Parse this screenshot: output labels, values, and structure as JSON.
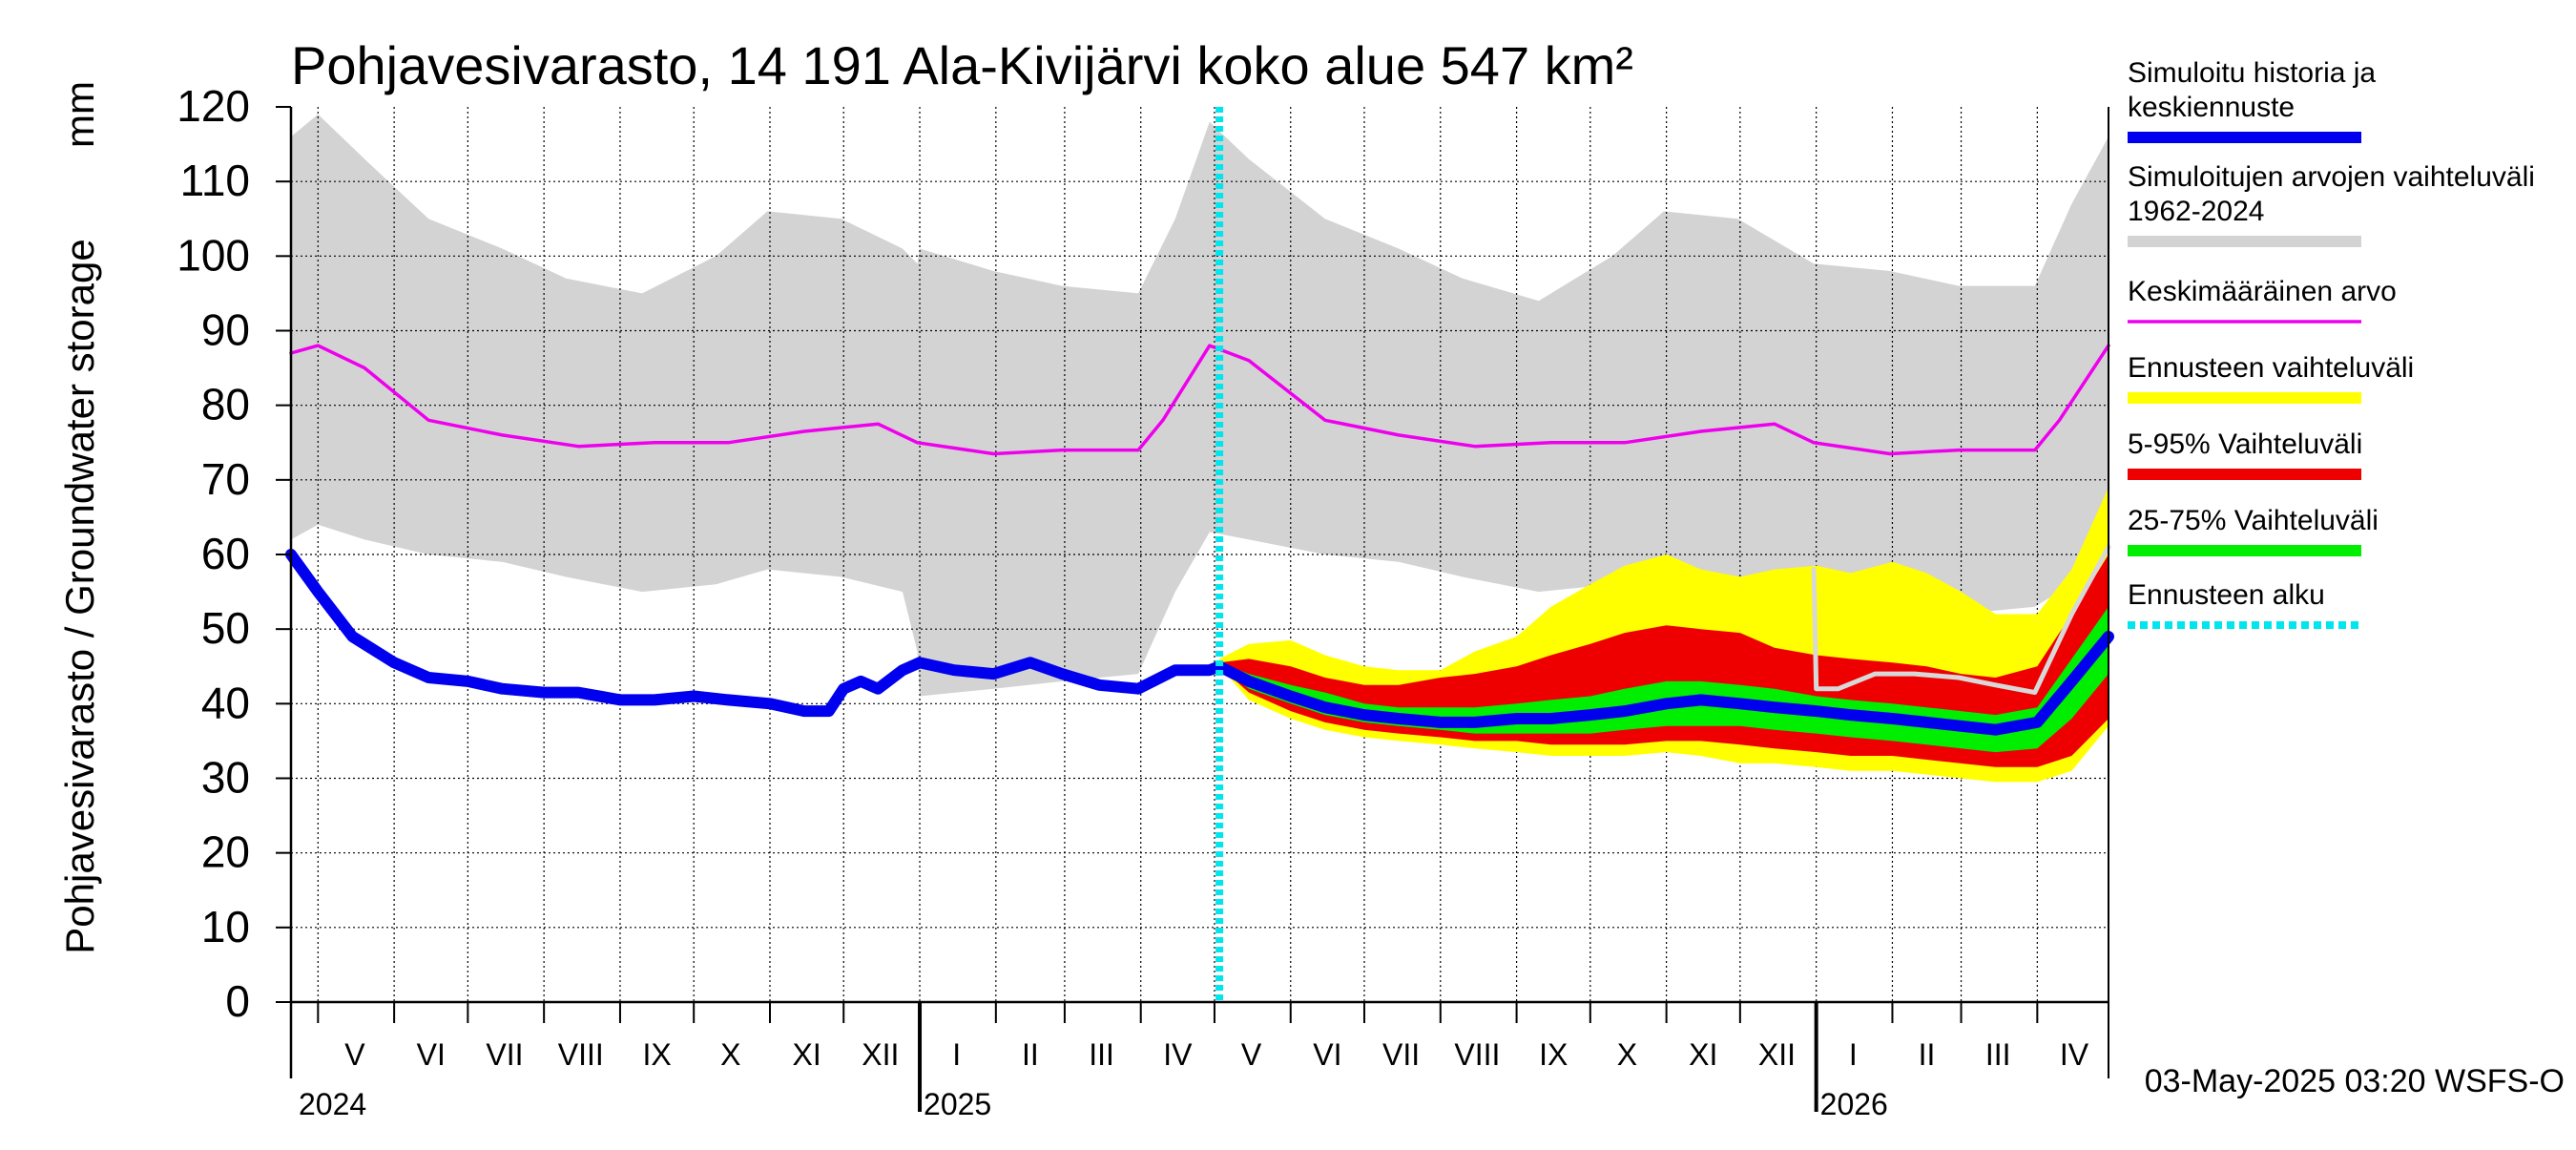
{
  "title": "Pohjavesivarasto, 14 191 Ala-Kivijärvi koko alue 547 km²",
  "unit": "mm",
  "ylabel": "Pohjavesivarasto / Groundwater storage",
  "footer": "03-May-2025 03:20 WSFS-O",
  "chart_data": {
    "type": "area",
    "title": "Pohjavesivarasto, 14 191 Ala-Kivijärvi koko alue 547 km²",
    "ylabel": "Pohjavesivarasto / Groundwater storage",
    "unit": "mm",
    "ylim": [
      0,
      120
    ],
    "yticks": [
      0,
      10,
      20,
      30,
      40,
      50,
      60,
      70,
      80,
      90,
      100,
      110,
      120
    ],
    "xlim": [
      "2024-04-20",
      "2026-04-30"
    ],
    "forecast_start": "2025-05-03",
    "grid": true,
    "legend_position": "right",
    "month_labels": [
      {
        "label": "V",
        "date": "2024-05-16"
      },
      {
        "label": "VI",
        "date": "2024-06-16"
      },
      {
        "label": "VII",
        "date": "2024-07-16"
      },
      {
        "label": "VIII",
        "date": "2024-08-16"
      },
      {
        "label": "IX",
        "date": "2024-09-16"
      },
      {
        "label": "X",
        "date": "2024-10-16"
      },
      {
        "label": "XI",
        "date": "2024-11-16"
      },
      {
        "label": "XII",
        "date": "2024-12-16"
      },
      {
        "label": "I",
        "date": "2025-01-16"
      },
      {
        "label": "II",
        "date": "2025-02-15"
      },
      {
        "label": "III",
        "date": "2025-03-16"
      },
      {
        "label": "IV",
        "date": "2025-04-16"
      },
      {
        "label": "V",
        "date": "2025-05-16"
      },
      {
        "label": "VI",
        "date": "2025-06-16"
      },
      {
        "label": "VII",
        "date": "2025-07-16"
      },
      {
        "label": "VIII",
        "date": "2025-08-16"
      },
      {
        "label": "IX",
        "date": "2025-09-16"
      },
      {
        "label": "X",
        "date": "2025-10-16"
      },
      {
        "label": "XI",
        "date": "2025-11-16"
      },
      {
        "label": "XII",
        "date": "2025-12-16"
      },
      {
        "label": "I",
        "date": "2026-01-16"
      },
      {
        "label": "II",
        "date": "2026-02-15"
      },
      {
        "label": "III",
        "date": "2026-03-16"
      },
      {
        "label": "IV",
        "date": "2026-04-16"
      }
    ],
    "year_labels": [
      {
        "label": "2024",
        "date": "2024-05-01"
      },
      {
        "label": "2025",
        "date": "2025-01-01"
      },
      {
        "label": "2026",
        "date": "2026-01-01"
      }
    ],
    "legend": [
      {
        "label": "Simuloitu historia ja keskiennuste",
        "color": "#0000ee",
        "kind": "thick"
      },
      {
        "label": "Simuloitujen arvojen vaihteluväli 1962-2024",
        "color": "#d3d3d3",
        "kind": "thick"
      },
      {
        "label": "Keskimääräinen arvo",
        "color": "#ee00ee",
        "kind": "thin"
      },
      {
        "label": "Ennusteen vaihteluväli",
        "color": "#ffff00",
        "kind": "thick"
      },
      {
        "label": "5-95% Vaihteluväli",
        "color": "#ee0000",
        "kind": "thick"
      },
      {
        "label": "25-75% Vaihteluväli",
        "color": "#00ee00",
        "kind": "thick"
      },
      {
        "label": "Ennusteen alku",
        "color": "#00e5ee",
        "kind": "dotted"
      }
    ],
    "series": [
      {
        "id": "hist_range",
        "x": [
          "2024-04-20",
          "2024-05-01",
          "2024-05-20",
          "2024-06-15",
          "2024-07-15",
          "2024-08-10",
          "2024-09-10",
          "2024-10-10",
          "2024-10-31",
          "2024-11-30",
          "2024-12-25",
          "2024-12-31",
          "2025-01-01",
          "2025-01-31",
          "2025-02-28",
          "2025-03-31",
          "2025-04-15",
          "2025-04-29",
          "2025-05-15",
          "2025-06-15",
          "2025-07-15",
          "2025-08-10",
          "2025-09-10",
          "2025-10-10",
          "2025-10-31",
          "2025-11-30",
          "2025-12-31",
          "2026-01-31",
          "2026-02-28",
          "2026-03-31",
          "2026-04-15",
          "2026-04-30"
        ],
        "upper": [
          116,
          119,
          113,
          105,
          101,
          97,
          95,
          100,
          106,
          105,
          101,
          99,
          101,
          98,
          96,
          95,
          105,
          118,
          113,
          105,
          101,
          97,
          94,
          100,
          106,
          105,
          99,
          98,
          96,
          96,
          107,
          116
        ],
        "lower": [
          62,
          64,
          62,
          60,
          59,
          57,
          55,
          56,
          58,
          57,
          55,
          47,
          41,
          42,
          43,
          44,
          55,
          63,
          62,
          60,
          59,
          57,
          55,
          56,
          57,
          57,
          50,
          51,
          52,
          53,
          56,
          62
        ]
      },
      {
        "id": "mean",
        "x": [
          "2024-04-20",
          "2024-05-01",
          "2024-05-20",
          "2024-06-15",
          "2024-07-15",
          "2024-08-15",
          "2024-09-15",
          "2024-10-15",
          "2024-11-15",
          "2024-12-15",
          "2024-12-31",
          "2025-01-31",
          "2025-02-28",
          "2025-03-31",
          "2025-04-10",
          "2025-04-29",
          "2025-05-15",
          "2025-06-15",
          "2025-07-15",
          "2025-08-15",
          "2025-09-15",
          "2025-10-15",
          "2025-11-15",
          "2025-12-15",
          "2025-12-31",
          "2026-01-31",
          "2026-02-28",
          "2026-03-31",
          "2026-04-10",
          "2026-04-30"
        ],
        "y": [
          87,
          88,
          85,
          78,
          76,
          74.5,
          75,
          75,
          76.5,
          77.5,
          75,
          73.5,
          74,
          74,
          78,
          88,
          86,
          78,
          76,
          74.5,
          75,
          75,
          76.5,
          77.5,
          75,
          73.5,
          74,
          74,
          78,
          88
        ]
      },
      {
        "id": "simulated",
        "x": [
          "2024-04-20",
          "2024-05-01",
          "2024-05-15",
          "2024-06-01",
          "2024-06-15",
          "2024-07-01",
          "2024-07-15",
          "2024-08-01",
          "2024-08-15",
          "2024-09-01",
          "2024-09-15",
          "2024-10-01",
          "2024-10-15",
          "2024-11-01",
          "2024-11-15",
          "2024-11-25",
          "2024-12-01",
          "2024-12-08",
          "2024-12-15",
          "2024-12-25",
          "2025-01-01",
          "2025-01-15",
          "2025-01-31",
          "2025-02-15",
          "2025-02-28",
          "2025-03-15",
          "2025-03-31",
          "2025-04-15",
          "2025-04-29",
          "2025-05-03",
          "2025-05-15",
          "2025-06-01",
          "2025-06-15",
          "2025-07-01",
          "2025-07-15",
          "2025-08-01",
          "2025-08-15",
          "2025-09-01",
          "2025-09-15",
          "2025-10-01",
          "2025-10-15",
          "2025-11-01",
          "2025-11-15",
          "2025-12-01",
          "2025-12-15",
          "2026-01-01",
          "2026-01-15",
          "2026-02-01",
          "2026-02-15",
          "2026-03-01",
          "2026-03-15",
          "2026-04-01",
          "2026-04-15",
          "2026-04-30"
        ],
        "y": [
          60,
          55,
          49,
          45.5,
          43.5,
          43,
          42,
          41.5,
          41.5,
          40.5,
          40.5,
          41,
          40.5,
          40,
          39,
          39,
          42,
          43,
          42,
          44.5,
          45.5,
          44.5,
          44,
          45.5,
          44,
          42.5,
          42,
          44.5,
          44.5,
          45,
          43,
          41,
          39.5,
          38.5,
          38,
          37.5,
          37.5,
          38,
          38,
          38.5,
          39,
          40,
          40.5,
          40,
          39.5,
          39,
          38.5,
          38,
          37.5,
          37,
          36.5,
          37.5,
          43,
          49
        ]
      },
      {
        "id": "forecast_envelope",
        "x": [
          "2025-05-03",
          "2025-05-15",
          "2025-06-01",
          "2025-06-15",
          "2025-07-01",
          "2025-07-15",
          "2025-08-01",
          "2025-08-15",
          "2025-09-01",
          "2025-09-15",
          "2025-10-01",
          "2025-10-15",
          "2025-11-01",
          "2025-11-15",
          "2025-12-01",
          "2025-12-15",
          "2026-01-01",
          "2026-01-15",
          "2026-02-01",
          "2026-02-15",
          "2026-03-01",
          "2026-03-15",
          "2026-04-01",
          "2026-04-15",
          "2026-04-30"
        ],
        "upper": [
          46,
          48,
          48.5,
          46.5,
          45,
          44.5,
          44.5,
          47,
          49,
          53,
          56,
          58.5,
          60,
          58,
          57,
          58,
          58.5,
          57.5,
          59,
          57.5,
          55,
          52,
          52,
          58,
          69
        ],
        "lower": [
          45,
          40.5,
          38,
          36.5,
          35.5,
          35,
          34.5,
          34,
          33.5,
          33,
          33,
          33,
          33.5,
          33,
          32,
          32,
          31.5,
          31,
          31,
          30.5,
          30,
          29.5,
          29.5,
          31,
          37
        ]
      },
      {
        "id": "p5_95",
        "x": [
          "2025-05-03",
          "2025-05-15",
          "2025-06-01",
          "2025-06-15",
          "2025-07-01",
          "2025-07-15",
          "2025-08-01",
          "2025-08-15",
          "2025-09-01",
          "2025-09-15",
          "2025-10-01",
          "2025-10-15",
          "2025-11-01",
          "2025-11-15",
          "2025-12-01",
          "2025-12-15",
          "2026-01-01",
          "2026-01-15",
          "2026-02-01",
          "2026-02-15",
          "2026-03-01",
          "2026-03-15",
          "2026-04-01",
          "2026-04-15",
          "2026-04-30"
        ],
        "upper": [
          45.5,
          46,
          45,
          43.5,
          42.5,
          42.5,
          43.5,
          44,
          45,
          46.5,
          48,
          49.5,
          50.5,
          50,
          49.5,
          47.5,
          46.5,
          46,
          45.5,
          45,
          44,
          43.5,
          45,
          52,
          60
        ],
        "lower": [
          45,
          41.5,
          39,
          37.5,
          36.5,
          36,
          35.5,
          35,
          35,
          34.5,
          34.5,
          34.5,
          35,
          35,
          34.5,
          34,
          33.5,
          33,
          33,
          32.5,
          32,
          31.5,
          31.5,
          33,
          38
        ]
      },
      {
        "id": "p25_75",
        "x": [
          "2025-05-03",
          "2025-05-15",
          "2025-06-01",
          "2025-06-15",
          "2025-07-01",
          "2025-07-15",
          "2025-08-01",
          "2025-08-15",
          "2025-09-01",
          "2025-09-15",
          "2025-10-01",
          "2025-10-15",
          "2025-11-01",
          "2025-11-15",
          "2025-12-01",
          "2025-12-15",
          "2026-01-01",
          "2026-01-15",
          "2026-02-01",
          "2026-02-15",
          "2026-03-01",
          "2026-03-15",
          "2026-04-01",
          "2026-04-15",
          "2026-04-30"
        ],
        "upper": [
          45.5,
          44,
          42.5,
          41.5,
          40,
          39.5,
          39.5,
          39.5,
          40,
          40.5,
          41,
          42,
          43,
          43,
          42.5,
          42,
          41,
          40.5,
          40,
          39.5,
          39,
          38.5,
          39.5,
          46,
          53
        ],
        "lower": [
          45,
          42,
          40,
          38.5,
          37.5,
          37,
          36.5,
          36,
          36,
          36,
          36,
          36.5,
          37,
          37,
          37,
          36.5,
          36,
          35.5,
          35,
          34.5,
          34,
          33.5,
          34,
          38,
          44
        ]
      },
      {
        "id": "gray_thin",
        "x": [
          "2025-12-31",
          "2026-01-01",
          "2026-01-10",
          "2026-01-25",
          "2026-02-10",
          "2026-02-28",
          "2026-03-15",
          "2026-03-31",
          "2026-04-15",
          "2026-04-30"
        ],
        "y": [
          58,
          42,
          42,
          44,
          44,
          43.5,
          42.5,
          41.5,
          52,
          61
        ]
      }
    ]
  }
}
